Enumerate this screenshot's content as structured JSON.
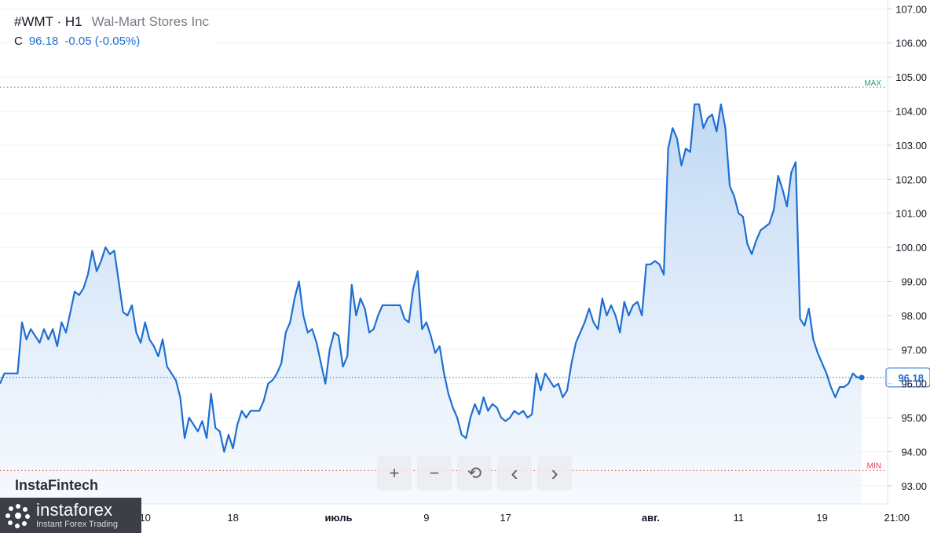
{
  "header": {
    "symbol": "#WMT · H1",
    "company": "Wal-Mart Stores Inc",
    "close_label": "C",
    "close_value": "96.18",
    "change": "-0.05 (-0.05%)"
  },
  "watermark": "InstaFintech",
  "branding": {
    "name": "instaforex",
    "tagline": "Instant Forex Trading"
  },
  "toolbar": [
    {
      "name": "zoom-in-button",
      "icon": "plus-icon",
      "glyph": "+"
    },
    {
      "name": "zoom-out-button",
      "icon": "minus-icon",
      "glyph": "−"
    },
    {
      "name": "reset-button",
      "icon": "reset-icon",
      "glyph": "⟲"
    },
    {
      "name": "scroll-left-button",
      "icon": "chevron-left-icon",
      "glyph": "‹"
    },
    {
      "name": "scroll-right-button",
      "icon": "chevron-right-icon",
      "glyph": "›"
    }
  ],
  "colors": {
    "line": "#1e6fd1",
    "fill_top": "#b8d4f3",
    "fill_bottom": "#f1f6fd",
    "max_line": "#26a269",
    "min_line": "#e0474c",
    "last_line": "#1e6fd1",
    "grid": "#eef0f3"
  },
  "chart_data": {
    "type": "area",
    "title": "",
    "xlabel": "",
    "ylabel": "",
    "ylim": [
      92.9,
      107.1
    ],
    "y_ticks": [
      "93.00",
      "94.00",
      "95.00",
      "96.00",
      "97.00",
      "98.00",
      "99.00",
      "100.00",
      "101.00",
      "102.00",
      "103.00",
      "104.00",
      "105.00",
      "106.00",
      "107.00"
    ],
    "x_ticks": [
      {
        "label": "10",
        "i": 33
      },
      {
        "label": "18",
        "i": 53
      },
      {
        "label": "июль",
        "i": 77
      },
      {
        "label": "9",
        "i": 97
      },
      {
        "label": "17",
        "i": 115
      },
      {
        "label": "авг.",
        "i": 148
      },
      {
        "label": "11",
        "i": 168
      },
      {
        "label": "19",
        "i": 187
      },
      {
        "label": "21:00",
        "i": 204
      }
    ],
    "max": {
      "label": "MAX",
      "value": 104.7
    },
    "min": {
      "label": "MIN",
      "value": 93.45
    },
    "last": {
      "label": "96.18",
      "value": 96.18
    },
    "values": [
      96.0,
      96.3,
      96.3,
      96.3,
      96.3,
      97.8,
      97.3,
      97.6,
      97.4,
      97.2,
      97.6,
      97.3,
      97.6,
      97.1,
      97.8,
      97.5,
      98.1,
      98.7,
      98.6,
      98.8,
      99.2,
      99.9,
      99.3,
      99.6,
      100.0,
      99.8,
      99.9,
      99.0,
      98.1,
      98.0,
      98.3,
      97.5,
      97.2,
      97.8,
      97.3,
      97.1,
      96.8,
      97.3,
      96.5,
      96.3,
      96.1,
      95.6,
      94.4,
      95.0,
      94.8,
      94.6,
      94.9,
      94.4,
      95.7,
      94.7,
      94.6,
      94.0,
      94.5,
      94.1,
      94.8,
      95.2,
      95.0,
      95.2,
      95.2,
      95.2,
      95.5,
      96.0,
      96.1,
      96.3,
      96.6,
      97.5,
      97.8,
      98.5,
      99.0,
      98.0,
      97.5,
      97.6,
      97.2,
      96.6,
      96.0,
      97.0,
      97.5,
      97.4,
      96.5,
      96.8,
      98.9,
      98.0,
      98.5,
      98.2,
      97.5,
      97.6,
      98.0,
      98.3,
      98.3,
      98.3,
      98.3,
      98.3,
      97.9,
      97.8,
      98.8,
      99.3,
      97.6,
      97.8,
      97.4,
      96.9,
      97.1,
      96.3,
      95.7,
      95.3,
      95.0,
      94.5,
      94.4,
      95.0,
      95.4,
      95.1,
      95.6,
      95.2,
      95.4,
      95.3,
      95.0,
      94.9,
      95.0,
      95.2,
      95.1,
      95.2,
      95.0,
      95.1,
      96.3,
      95.8,
      96.3,
      96.1,
      95.9,
      96.0,
      95.6,
      95.8,
      96.6,
      97.2,
      97.5,
      97.8,
      98.2,
      97.8,
      97.6,
      98.5,
      98.0,
      98.3,
      98.0,
      97.5,
      98.4,
      98.0,
      98.3,
      98.4,
      98.0,
      99.5,
      99.5,
      99.6,
      99.5,
      99.2,
      102.9,
      103.5,
      103.2,
      102.4,
      102.9,
      102.8,
      104.2,
      104.2,
      103.5,
      103.8,
      103.9,
      103.4,
      104.2,
      103.5,
      101.8,
      101.5,
      101.0,
      100.9,
      100.1,
      99.8,
      100.2,
      100.5,
      100.6,
      100.7,
      101.1,
      102.1,
      101.7,
      101.2,
      102.2,
      102.5,
      97.9,
      97.7,
      98.2,
      97.3,
      96.9,
      96.6,
      96.3,
      95.9,
      95.6,
      95.9,
      95.9,
      96.0,
      96.3,
      96.18,
      96.18
    ]
  }
}
